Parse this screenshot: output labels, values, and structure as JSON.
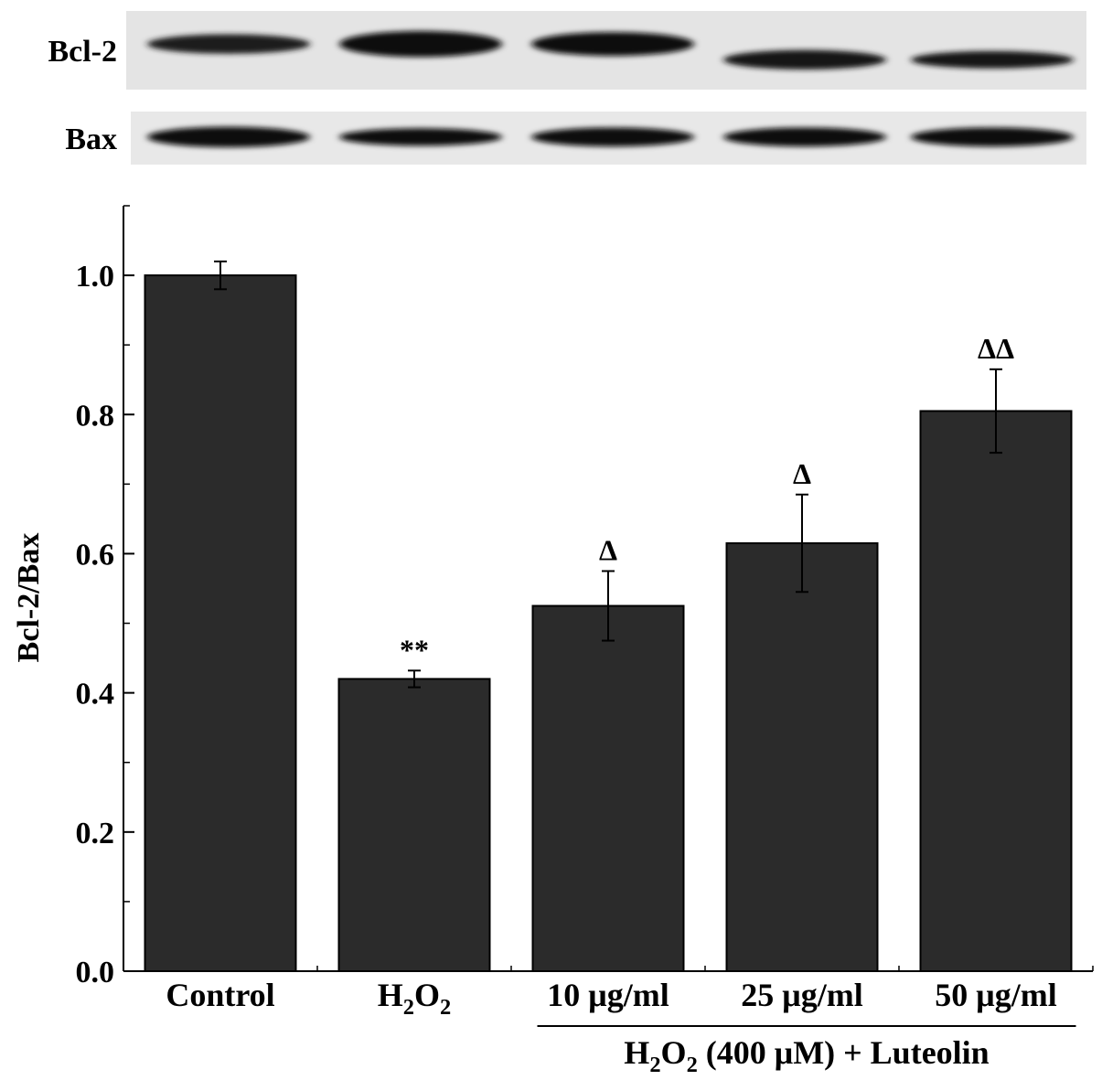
{
  "blot": {
    "rows": [
      {
        "label": "Bcl-2",
        "intensity": [
          0.82,
          0.95,
          0.9,
          0.85,
          0.88
        ],
        "thickness": [
          0.45,
          0.6,
          0.55,
          0.45,
          0.4
        ]
      },
      {
        "label": "Bax",
        "intensity": [
          0.95,
          0.92,
          0.95,
          0.92,
          0.95
        ],
        "thickness": [
          0.7,
          0.6,
          0.65,
          0.65,
          0.65
        ]
      }
    ]
  },
  "chart_data": {
    "type": "bar",
    "categories": [
      "Control",
      "H2O2",
      "10 μg/ml",
      "25 μg/ml",
      "50 μg/ml"
    ],
    "category_display": [
      {
        "parts": [
          {
            "t": "Control"
          }
        ]
      },
      {
        "parts": [
          {
            "t": "H"
          },
          {
            "t": "2",
            "sub": true
          },
          {
            "t": "O"
          },
          {
            "t": "2",
            "sub": true
          }
        ]
      },
      {
        "parts": [
          {
            "t": "10 μg/ml"
          }
        ]
      },
      {
        "parts": [
          {
            "t": "25 μg/ml"
          }
        ]
      },
      {
        "parts": [
          {
            "t": "50 μg/ml"
          }
        ]
      }
    ],
    "values": [
      1.0,
      0.42,
      0.525,
      0.615,
      0.805
    ],
    "errors": [
      0.02,
      0.012,
      0.05,
      0.07,
      0.06
    ],
    "annotations": [
      "",
      "**",
      "Δ",
      "Δ",
      "ΔΔ"
    ],
    "ylabel": "Bcl-2/Bax",
    "xlabel": "",
    "ylim": [
      0,
      1.1
    ],
    "yticks": [
      "0.0",
      "0.2",
      "0.4",
      "0.6",
      "0.8",
      "1.0"
    ],
    "group_label": {
      "parts": [
        {
          "t": "H"
        },
        {
          "t": "2",
          "sub": true
        },
        {
          "t": "O"
        },
        {
          "t": "2",
          "sub": true
        },
        {
          "t": " (400 μM) + Luteolin"
        }
      ],
      "spans_categories": [
        2,
        4
      ]
    },
    "bar_color": "#2b2b2b",
    "grid": false
  }
}
